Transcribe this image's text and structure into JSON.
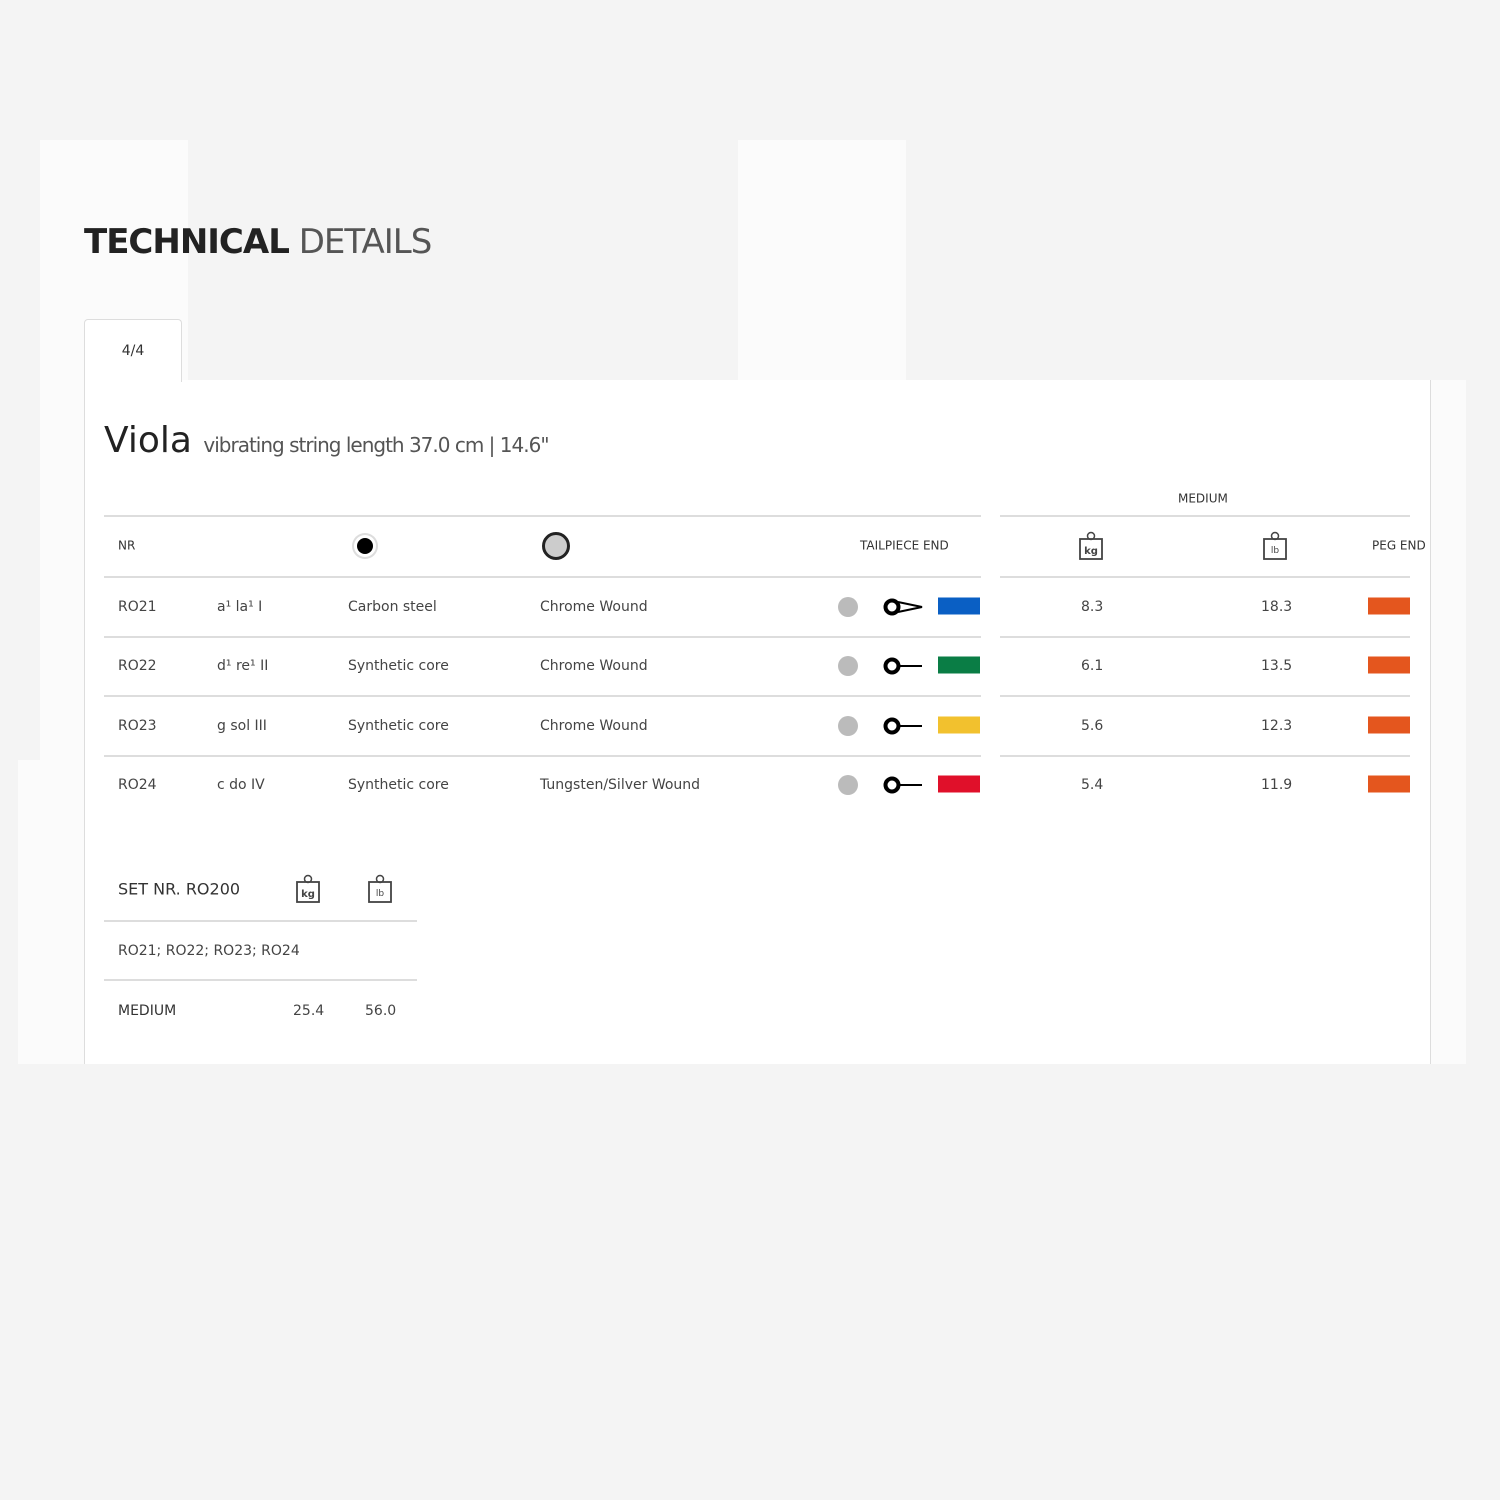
{
  "heading": {
    "bold": "TECHNICAL",
    "light": "DETAILS"
  },
  "tab": {
    "label": "4/4"
  },
  "instrument": {
    "name": "Viola",
    "subtitle": "vibrating string length 37.0 cm | 14.6\""
  },
  "table": {
    "headers": {
      "nr": "NR",
      "core_icon": "core-icon",
      "winding_icon": "winding-icon",
      "tailpiece": "TAILPIECE END",
      "medium": "MEDIUM",
      "kg_icon": "weight-kg-icon",
      "lb_icon": "weight-lb-icon",
      "peg": "PEG END"
    },
    "rows": [
      {
        "nr": "RO21",
        "note": "a¹  la¹  I",
        "core": "Carbon steel",
        "winding": "Chrome Wound",
        "tail_type": "loop",
        "tail_color": "#0a5fc4",
        "kg": "8.3",
        "lb": "18.3",
        "peg_color": "#e4561e"
      },
      {
        "nr": "RO22",
        "note": "d¹  re¹  II",
        "core": "Synthetic core",
        "winding": "Chrome Wound",
        "tail_type": "ball",
        "tail_color": "#0a7d45",
        "kg": "6.1",
        "lb": "13.5",
        "peg_color": "#e4561e"
      },
      {
        "nr": "RO23",
        "note": "g  sol  III",
        "core": "Synthetic core",
        "winding": "Chrome Wound",
        "tail_type": "ball",
        "tail_color": "#f2c12e",
        "kg": "5.6",
        "lb": "12.3",
        "peg_color": "#e4561e"
      },
      {
        "nr": "RO24",
        "note": "c  do  IV",
        "core": "Synthetic core",
        "winding": "Tungsten/Silver Wound",
        "tail_type": "ball",
        "tail_color": "#e0102a",
        "kg": "5.4",
        "lb": "11.9",
        "peg_color": "#e4561e"
      }
    ]
  },
  "set": {
    "title": "SET NR. RO200",
    "strings": "RO21; RO22; RO23; RO24",
    "tension": "MEDIUM",
    "kg": "25.4",
    "lb": "56.0"
  }
}
